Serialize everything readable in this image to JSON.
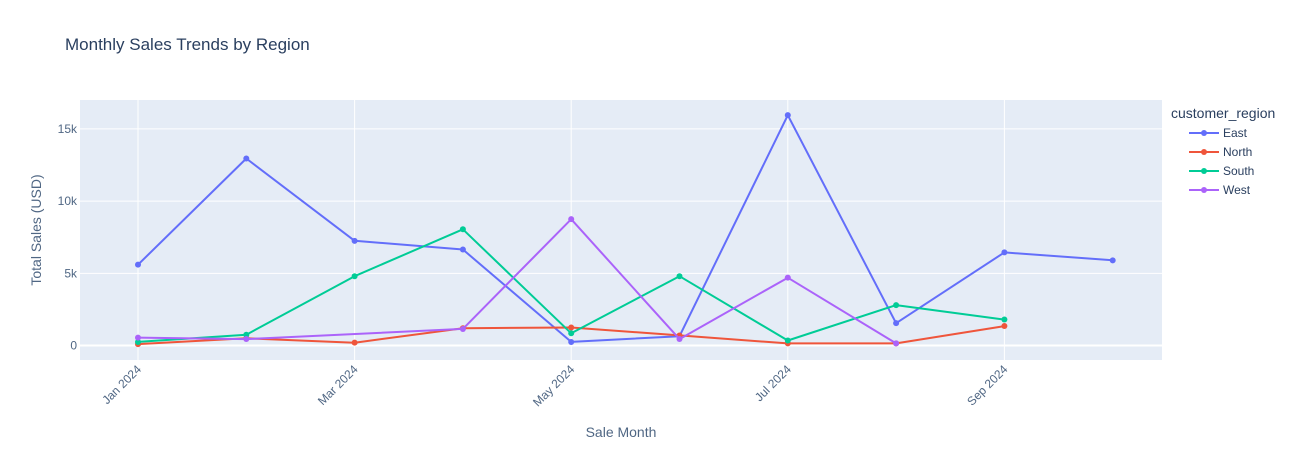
{
  "chart_data": {
    "type": "line",
    "title": "Monthly Sales Trends by Region",
    "xlabel": "Sale Month",
    "ylabel": "Total Sales (USD)",
    "x": [
      "2024-01",
      "2024-02",
      "2024-03",
      "2024-04",
      "2024-05",
      "2024-06",
      "2024-07",
      "2024-08",
      "2024-09",
      "2024-10"
    ],
    "x_ticks": [
      {
        "month": "2024-01",
        "label": "Jan 2024"
      },
      {
        "month": "2024-03",
        "label": "Mar 2024"
      },
      {
        "month": "2024-05",
        "label": "May 2024"
      },
      {
        "month": "2024-07",
        "label": "Jul 2024"
      },
      {
        "month": "2024-09",
        "label": "Sep 2024"
      }
    ],
    "y_ticks": [
      {
        "value": 0,
        "label": "0"
      },
      {
        "value": 5000,
        "label": "5k"
      },
      {
        "value": 10000,
        "label": "10k"
      },
      {
        "value": 15000,
        "label": "15k"
      }
    ],
    "ylim": [
      -1000,
      17000
    ],
    "grid": true,
    "legend_title": "customer_region",
    "legend_position": "top-right",
    "series": [
      {
        "name": "East",
        "color": "#636efa",
        "points": [
          {
            "x": "2024-01",
            "y": 5600
          },
          {
            "x": "2024-02",
            "y": 12950
          },
          {
            "x": "2024-03",
            "y": 7250
          },
          {
            "x": "2024-04",
            "y": 6650
          },
          {
            "x": "2024-05",
            "y": 250
          },
          {
            "x": "2024-06",
            "y": 650
          },
          {
            "x": "2024-07",
            "y": 15950
          },
          {
            "x": "2024-08",
            "y": 1550
          },
          {
            "x": "2024-09",
            "y": 6450
          },
          {
            "x": "2024-10",
            "y": 5900
          }
        ]
      },
      {
        "name": "North",
        "color": "#ef553b",
        "points": [
          {
            "x": "2024-01",
            "y": 100
          },
          {
            "x": "2024-02",
            "y": 500
          },
          {
            "x": "2024-03",
            "y": 200
          },
          {
            "x": "2024-04",
            "y": 1200
          },
          {
            "x": "2024-05",
            "y": 1250
          },
          {
            "x": "2024-06",
            "y": 700
          },
          {
            "x": "2024-07",
            "y": 150
          },
          {
            "x": "2024-08",
            "y": 150
          },
          {
            "x": "2024-09",
            "y": 1350
          }
        ]
      },
      {
        "name": "South",
        "color": "#00cc96",
        "points": [
          {
            "x": "2024-01",
            "y": 250
          },
          {
            "x": "2024-02",
            "y": 750
          },
          {
            "x": "2024-03",
            "y": 4800
          },
          {
            "x": "2024-04",
            "y": 8050
          },
          {
            "x": "2024-05",
            "y": 850
          },
          {
            "x": "2024-06",
            "y": 4800
          },
          {
            "x": "2024-07",
            "y": 350
          },
          {
            "x": "2024-08",
            "y": 2800
          },
          {
            "x": "2024-09",
            "y": 1800
          }
        ]
      },
      {
        "name": "West",
        "color": "#ab63fa",
        "points": [
          {
            "x": "2024-01",
            "y": 550
          },
          {
            "x": "2024-02",
            "y": 450
          },
          {
            "x": "2024-04",
            "y": 1150
          },
          {
            "x": "2024-05",
            "y": 8750
          },
          {
            "x": "2024-06",
            "y": 450
          },
          {
            "x": "2024-07",
            "y": 4700
          },
          {
            "x": "2024-08",
            "y": 150
          }
        ]
      }
    ],
    "colors": {
      "plot_bg": "#e5ecf6",
      "grid": "#ffffff"
    }
  }
}
